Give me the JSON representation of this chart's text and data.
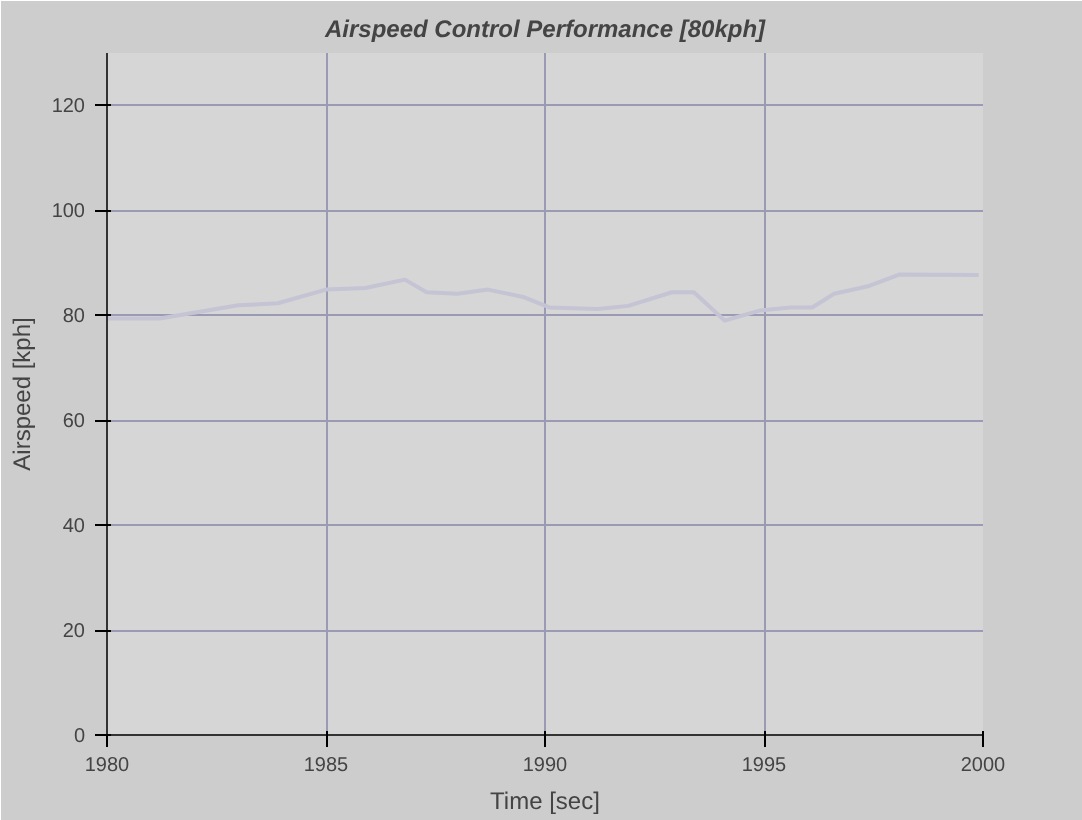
{
  "chart_data": {
    "type": "line",
    "title": "Airspeed Control Performance [80kph]",
    "xlabel": "Time [sec]",
    "ylabel": "Airspeed [kph]",
    "x": [
      1980,
      1981.2,
      1983.0,
      1983.9,
      1985.0,
      1985.9,
      1986.8,
      1987.3,
      1988.0,
      1988.7,
      1989.5,
      1990.1,
      1991.2,
      1991.9,
      1992.9,
      1993.4,
      1994.1,
      1994.9,
      1995.6,
      1996.1,
      1996.6,
      1997.4,
      1998.1,
      1999.9
    ],
    "series": [
      {
        "color": "#c4c4d4",
        "values": [
          79.4,
          79.4,
          81.9,
          82.3,
          84.9,
          85.2,
          86.8,
          84.4,
          84.1,
          84.9,
          83.5,
          81.5,
          81.2,
          81.8,
          84.4,
          84.4,
          79.0,
          80.9,
          81.5,
          81.5,
          84.1,
          85.6,
          87.8,
          87.7
        ]
      }
    ],
    "xlim": [
      1980,
      2000
    ],
    "ylim": [
      0,
      130
    ],
    "xticks": [
      1980,
      1985,
      1990,
      1995,
      2000
    ],
    "yticks": [
      0,
      20,
      40,
      60,
      80,
      100,
      120
    ],
    "grid": true
  }
}
